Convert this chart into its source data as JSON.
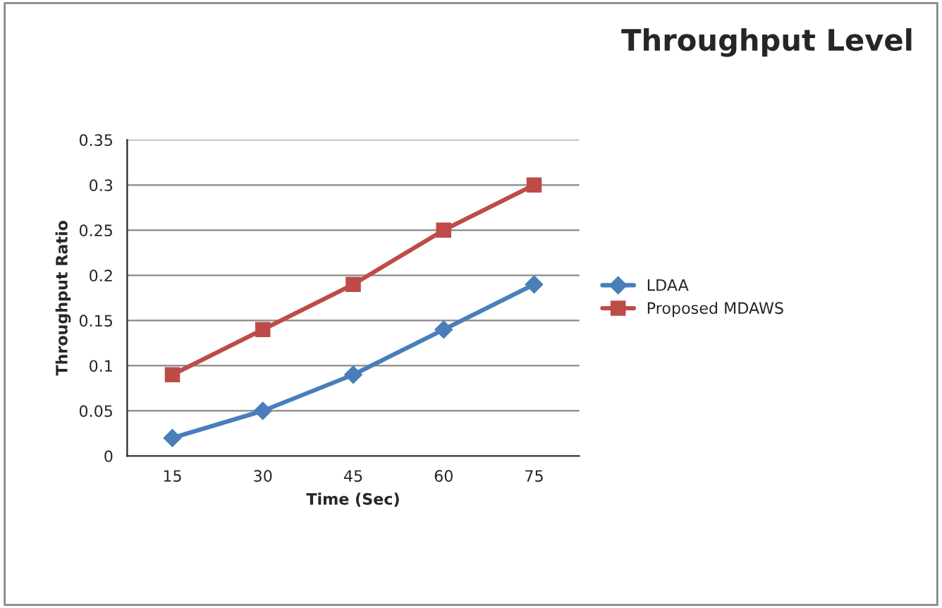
{
  "chart_data": {
    "type": "line",
    "title": "Throughput Level",
    "xlabel": "Time (Sec)",
    "ylabel": "Throughput Ratio",
    "categories": [
      "15",
      "30",
      "45",
      "60",
      "75"
    ],
    "series": [
      {
        "name": "LDAA",
        "color": "#4a7ebb",
        "marker": "diamond",
        "values": [
          0.02,
          0.05,
          0.09,
          0.14,
          0.19
        ]
      },
      {
        "name": "Proposed MDAWS",
        "color": "#be4b48",
        "marker": "square",
        "values": [
          0.09,
          0.14,
          0.19,
          0.25,
          0.3
        ]
      }
    ],
    "ylim": [
      0,
      0.35
    ],
    "yticks": [
      {
        "value": 0,
        "label": "0"
      },
      0.05,
      0.1,
      0.15,
      0.2,
      0.25,
      0.3,
      0.35
    ],
    "grid": "y",
    "legend": "right",
    "line_style": "solid"
  }
}
